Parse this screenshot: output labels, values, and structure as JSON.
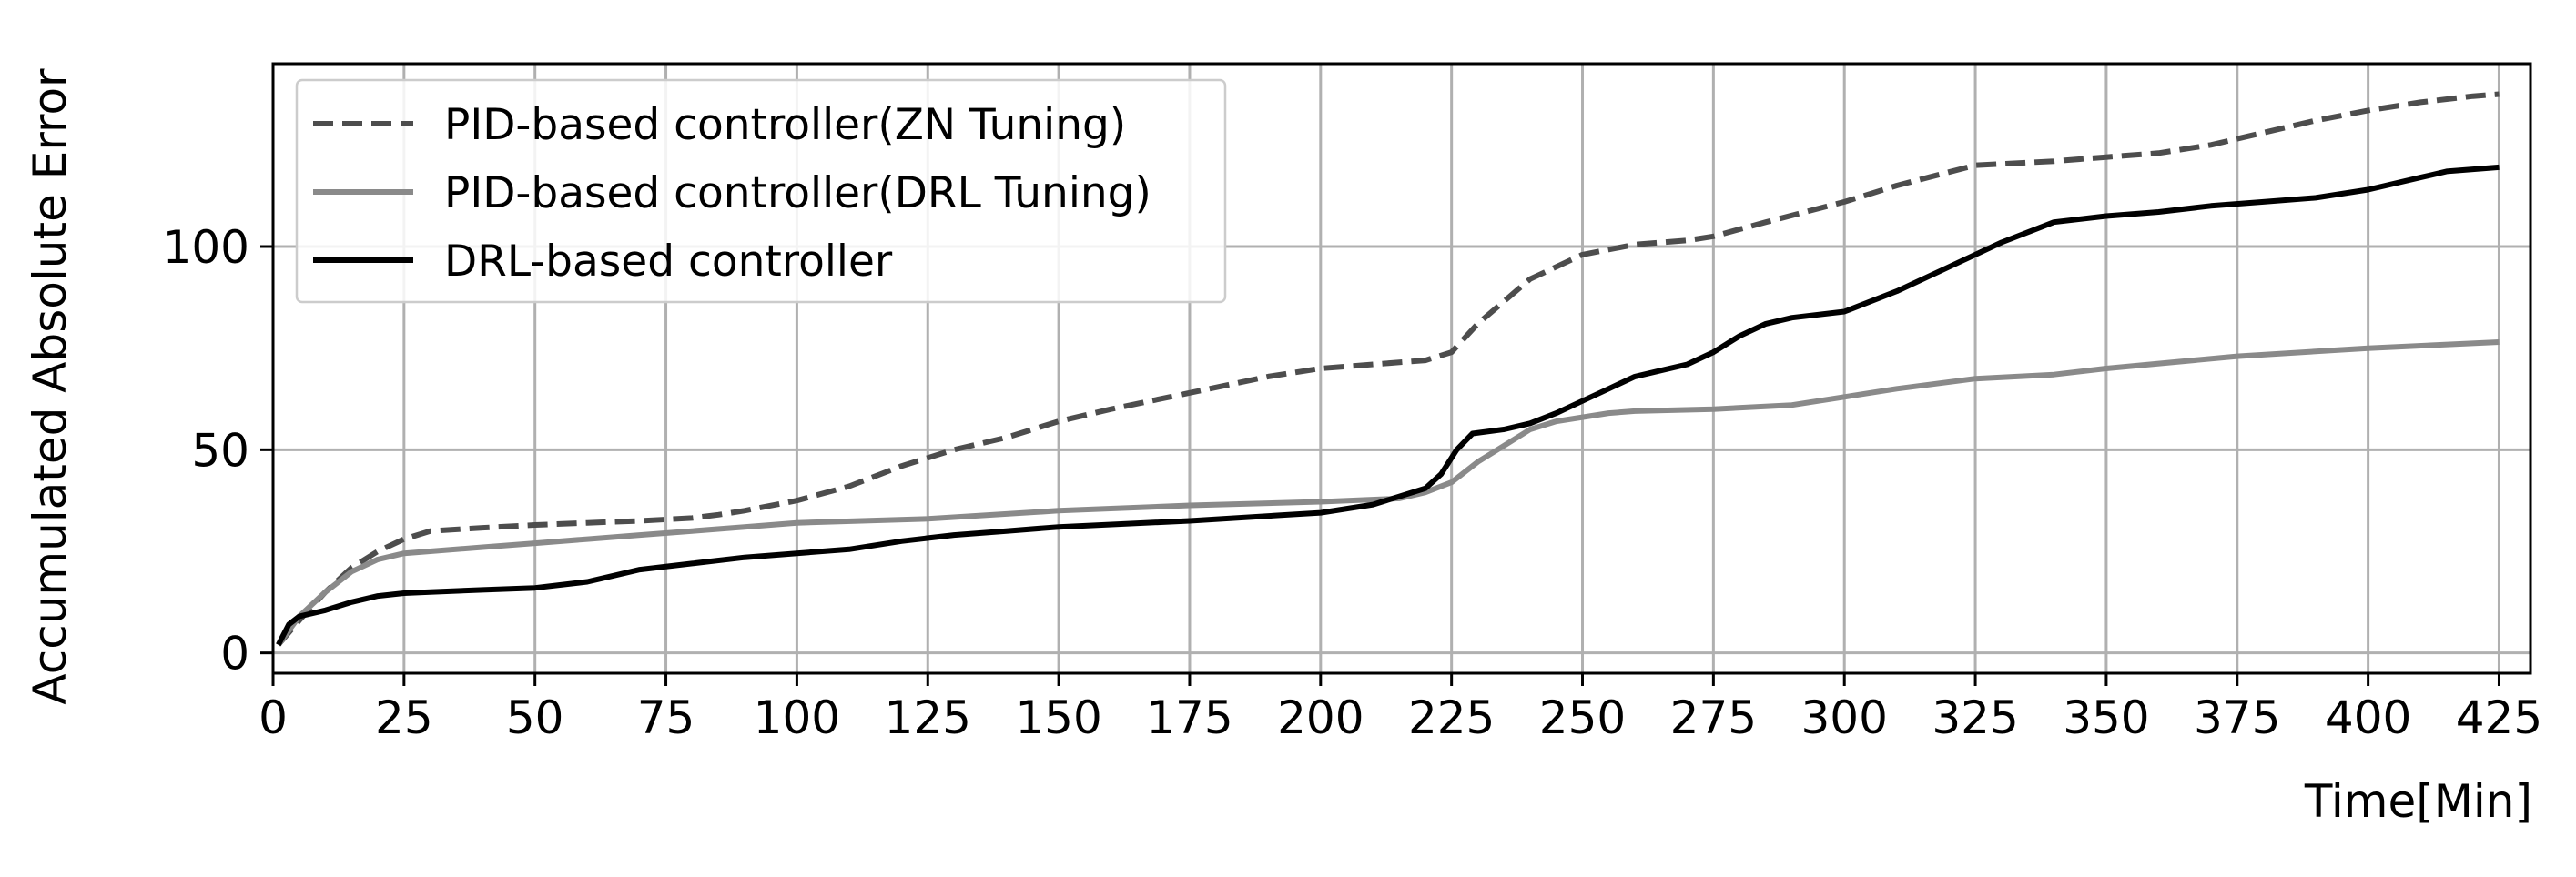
{
  "chart_data": {
    "type": "line",
    "title": "",
    "xlabel": "Time[Min]",
    "ylabel": "Accumulated Absolute Error",
    "xlim": [
      0,
      431
    ],
    "ylim": [
      -5,
      145
    ],
    "xticks": [
      0,
      25,
      50,
      75,
      100,
      125,
      150,
      175,
      200,
      225,
      250,
      275,
      300,
      325,
      350,
      375,
      400,
      425
    ],
    "yticks": [
      0,
      50,
      100
    ],
    "grid": true,
    "legend_position": "top-left",
    "series": [
      {
        "name": "PID-based controller(ZN Tuning)",
        "color": "#4d4d4d",
        "style": "dashed",
        "x": [
          1,
          5,
          10,
          15,
          20,
          25,
          30,
          40,
          50,
          60,
          70,
          80,
          85,
          90,
          100,
          110,
          120,
          130,
          140,
          150,
          160,
          175,
          190,
          200,
          210,
          220,
          225,
          230,
          240,
          250,
          260,
          270,
          275,
          285,
          300,
          310,
          325,
          340,
          350,
          360,
          370,
          380,
          390,
          400,
          410,
          420,
          425
        ],
        "y": [
          2,
          8,
          15,
          21,
          25,
          28,
          30,
          30.8,
          31.5,
          32,
          32.5,
          33.2,
          34,
          35,
          37.5,
          41,
          46,
          50,
          53,
          57,
          60,
          64,
          68,
          70,
          71,
          72,
          74,
          81,
          92,
          98,
          100.5,
          101.5,
          102.5,
          106,
          111,
          115,
          120,
          121,
          122,
          123,
          125,
          128,
          131,
          133.5,
          135.5,
          137,
          137.5
        ]
      },
      {
        "name": "PID-based controller(DRL Tuning)",
        "color": "#8a8a8a",
        "style": "solid",
        "x": [
          1,
          5,
          10,
          15,
          20,
          25,
          30,
          40,
          50,
          60,
          70,
          80,
          90,
          100,
          125,
          150,
          175,
          200,
          215,
          220,
          225,
          230,
          235,
          240,
          245,
          250,
          255,
          260,
          275,
          290,
          300,
          310,
          325,
          340,
          350,
          375,
          400,
          425
        ],
        "y": [
          2,
          9,
          15,
          20,
          23,
          24.5,
          25,
          26,
          27,
          28,
          29,
          30,
          31,
          32,
          33,
          35,
          36.3,
          37.2,
          38,
          39.5,
          42,
          47,
          51,
          55,
          57,
          58,
          59,
          59.5,
          60,
          61,
          63,
          65,
          67.5,
          68.5,
          70,
          73,
          75,
          76.5
        ]
      },
      {
        "name": "DRL-based controller",
        "color": "#000000",
        "style": "solid",
        "x": [
          1,
          3,
          5,
          10,
          15,
          20,
          25,
          30,
          40,
          50,
          60,
          65,
          70,
          80,
          90,
          100,
          110,
          120,
          130,
          140,
          150,
          175,
          200,
          210,
          215,
          220,
          223,
          226,
          229,
          235,
          240,
          245,
          250,
          255,
          260,
          265,
          270,
          275,
          280,
          285,
          290,
          300,
          310,
          320,
          330,
          340,
          350,
          355,
          360,
          370,
          380,
          390,
          400,
          410,
          415,
          425
        ],
        "y": [
          2,
          7,
          9,
          10.5,
          12.5,
          14,
          14.7,
          15,
          15.5,
          16,
          17.5,
          19,
          20.5,
          22,
          23.5,
          24.5,
          25.5,
          27.5,
          29,
          30,
          31,
          32.5,
          34.5,
          36.5,
          38.5,
          40.5,
          44,
          50,
          54,
          55,
          56.5,
          59,
          62,
          65,
          68,
          69.5,
          71,
          74,
          78,
          81,
          82.5,
          84,
          89,
          95,
          101,
          106,
          107.5,
          108,
          108.5,
          110,
          111,
          112,
          114,
          117,
          118.5,
          119.5
        ]
      }
    ]
  }
}
